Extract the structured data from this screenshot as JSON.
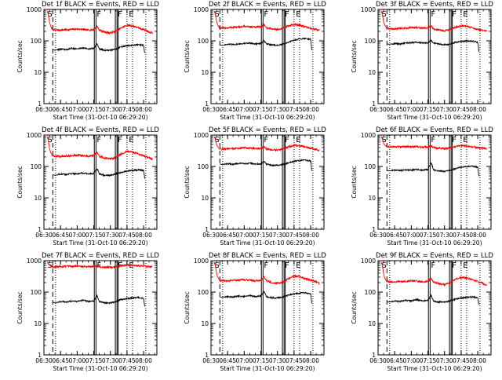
{
  "chart_data": {
    "type": "line",
    "yscale": "log",
    "ylim": [
      1,
      1000
    ],
    "ylabel": "Counts/sec",
    "xlabel": "Start Time (31-Oct-10 06:29:20)",
    "x_tick_labels": [
      "06:30",
      "06:45",
      "07:00",
      "07:15",
      "07:30",
      "07:45",
      "08:00"
    ],
    "y_tick_labels": [
      "1",
      "10",
      "100",
      "1000"
    ],
    "x_tick_minutes": [
      0,
      15,
      30,
      45,
      60,
      75,
      90
    ],
    "xlim_minutes": [
      0,
      102
    ],
    "y_ticks": [
      1,
      10,
      100,
      1000
    ],
    "colors": {
      "events": "#000000",
      "lld": "#ff0000"
    },
    "legend_text": "BLACK = Events, RED = LLD",
    "markers": [
      {
        "label": "S",
        "minute": 2.5,
        "style": "solid"
      },
      {
        "label": "F",
        "minute": 47,
        "style": "solid"
      },
      {
        "label": "F",
        "minute": 66,
        "style": "solid"
      },
      {
        "label": "E",
        "minute": 76,
        "style": "solid"
      }
    ],
    "vlines": [
      {
        "minute": 8,
        "style": "dashed"
      },
      {
        "minute": 10.5,
        "style": "dotted"
      },
      {
        "minute": 45.5,
        "style": "solid"
      },
      {
        "minute": 47,
        "style": "solid"
      },
      {
        "minute": 64.5,
        "style": "solid"
      },
      {
        "minute": 66,
        "style": "solid"
      },
      {
        "minute": 67,
        "style": "solid"
      },
      {
        "minute": 75,
        "style": "dotted"
      },
      {
        "minute": 80,
        "style": "dotted"
      },
      {
        "minute": 92,
        "style": "dotted"
      }
    ],
    "panels": [
      {
        "title": "Det 1f BLACK = Events, RED = LLD",
        "series": [
          {
            "color": "#ff0000",
            "x_minutes": [
              3,
              5,
              6,
              7,
              8,
              10,
              15,
              20,
              25,
              30,
              35,
              40,
              45,
              48,
              50,
              55,
              60,
              65,
              70,
              75,
              80,
              85,
              90,
              95,
              98
            ],
            "values": [
              900,
              400,
              300,
              250,
              230,
              220,
              220,
              225,
              230,
              240,
              230,
              220,
              230,
              290,
              220,
              190,
              180,
              200,
              260,
              310,
              300,
              260,
              230,
              190,
              180
            ]
          },
          {
            "color": "#000000",
            "x_minutes": [
              8,
              10,
              15,
              20,
              25,
              30,
              35,
              40,
              45,
              48,
              50,
              55,
              60,
              65,
              70,
              75,
              80,
              85,
              90,
              91
            ],
            "values": [
              52,
              50,
              55,
              52,
              58,
              55,
              60,
              55,
              58,
              80,
              55,
              50,
              50,
              55,
              65,
              70,
              72,
              75,
              72,
              40
            ]
          }
        ]
      },
      {
        "title": "Det 2f BLACK = Events, RED = LLD",
        "series": [
          {
            "color": "#ff0000",
            "x_minutes": [
              3,
              5,
              6,
              7,
              8,
              10,
              15,
              20,
              25,
              30,
              35,
              40,
              45,
              48,
              50,
              55,
              60,
              65,
              70,
              75,
              80,
              85,
              90,
              95,
              98
            ],
            "values": [
              900,
              420,
              320,
              280,
              260,
              250,
              260,
              270,
              270,
              290,
              280,
              270,
              280,
              330,
              260,
              240,
              230,
              250,
              300,
              330,
              320,
              280,
              250,
              230,
              220
            ]
          },
          {
            "color": "#000000",
            "x_minutes": [
              8,
              10,
              15,
              20,
              25,
              30,
              35,
              40,
              45,
              48,
              50,
              55,
              60,
              65,
              70,
              75,
              80,
              85,
              90,
              91
            ],
            "values": [
              75,
              72,
              78,
              76,
              80,
              82,
              85,
              80,
              82,
              100,
              80,
              75,
              72,
              78,
              90,
              105,
              115,
              120,
              112,
              50
            ]
          }
        ]
      },
      {
        "title": "Det 3f BLACK = Events, RED = LLD",
        "series": [
          {
            "color": "#ff0000",
            "x_minutes": [
              3,
              5,
              6,
              7,
              8,
              10,
              15,
              20,
              25,
              30,
              35,
              40,
              45,
              48,
              50,
              55,
              60,
              65,
              70,
              75,
              80,
              85,
              90,
              95,
              98
            ],
            "values": [
              900,
              400,
              320,
              280,
              250,
              240,
              240,
              250,
              250,
              270,
              260,
              250,
              260,
              300,
              240,
              220,
              210,
              230,
              270,
              300,
              290,
              260,
              230,
              210,
              200
            ]
          },
          {
            "color": "#000000",
            "x_minutes": [
              8,
              10,
              15,
              20,
              25,
              30,
              35,
              40,
              45,
              48,
              50,
              55,
              60,
              65,
              70,
              75,
              80,
              85,
              90,
              91
            ],
            "values": [
              80,
              78,
              82,
              80,
              85,
              88,
              90,
              85,
              88,
              105,
              85,
              80,
              75,
              80,
              90,
              95,
              100,
              98,
              90,
              45
            ]
          }
        ]
      },
      {
        "title": "Det 4f BLACK = Events, RED = LLD",
        "series": [
          {
            "color": "#ff0000",
            "x_minutes": [
              3,
              5,
              6,
              7,
              8,
              10,
              15,
              20,
              25,
              30,
              35,
              40,
              45,
              48,
              50,
              55,
              60,
              65,
              70,
              75,
              80,
              85,
              90,
              95,
              98
            ],
            "values": [
              900,
              380,
              280,
              240,
              220,
              210,
              210,
              215,
              220,
              230,
              220,
              210,
              220,
              280,
              210,
              185,
              175,
              190,
              250,
              300,
              290,
              250,
              220,
              190,
              170
            ]
          },
          {
            "color": "#000000",
            "x_minutes": [
              8,
              10,
              15,
              20,
              25,
              30,
              35,
              40,
              45,
              48,
              50,
              55,
              60,
              65,
              70,
              75,
              80,
              85,
              90,
              91
            ],
            "values": [
              55,
              52,
              58,
              55,
              60,
              58,
              62,
              58,
              60,
              85,
              58,
              52,
              52,
              58,
              65,
              72,
              75,
              78,
              74,
              42
            ]
          }
        ]
      },
      {
        "title": "Det 5f BLACK = Events, RED = LLD",
        "series": [
          {
            "color": "#ff0000",
            "x_minutes": [
              3,
              5,
              6,
              7,
              8,
              10,
              15,
              20,
              25,
              30,
              35,
              40,
              45,
              48,
              50,
              55,
              60,
              65,
              70,
              75,
              80,
              85,
              90,
              95,
              98
            ],
            "values": [
              900,
              500,
              420,
              390,
              370,
              360,
              360,
              370,
              380,
              390,
              380,
              370,
              380,
              430,
              360,
              340,
              330,
              350,
              420,
              470,
              460,
              420,
              380,
              350,
              320
            ]
          },
          {
            "color": "#000000",
            "x_minutes": [
              8,
              10,
              15,
              20,
              25,
              30,
              35,
              40,
              45,
              48,
              50,
              55,
              60,
              65,
              70,
              75,
              80,
              85,
              90,
              91
            ],
            "values": [
              120,
              115,
              122,
              118,
              125,
              122,
              128,
              120,
              122,
              145,
              118,
              110,
              108,
              115,
              130,
              145,
              155,
              160,
              150,
              70
            ]
          }
        ]
      },
      {
        "title": "Det 6f BLACK = Events, RED = LLD",
        "series": [
          {
            "color": "#ff0000",
            "x_minutes": [
              3,
              5,
              6,
              7,
              8,
              10,
              15,
              20,
              25,
              30,
              35,
              40,
              45,
              48,
              50,
              55,
              60,
              65,
              70,
              75,
              80,
              85,
              90,
              95,
              98
            ],
            "values": [
              900,
              550,
              480,
              450,
              430,
              420,
              420,
              425,
              420,
              430,
              420,
              410,
              420,
              450,
              400,
              380,
              370,
              390,
              430,
              460,
              450,
              420,
              400,
              380,
              360
            ]
          },
          {
            "color": "#000000",
            "x_minutes": [
              8,
              10,
              15,
              20,
              25,
              30,
              35,
              40,
              45,
              48,
              50,
              55,
              60,
              65,
              70,
              75,
              80,
              85,
              90,
              91
            ],
            "values": [
              75,
              72,
              76,
              74,
              78,
              76,
              80,
              76,
              80,
              130,
              78,
              72,
              70,
              75,
              85,
              95,
              100,
              102,
              95,
              48
            ]
          }
        ]
      },
      {
        "title": "Det 7f BLACK = Events, RED = LLD",
        "series": [
          {
            "color": "#ff0000",
            "x_minutes": [
              3,
              5,
              6,
              7,
              8,
              10,
              15,
              20,
              25,
              30,
              35,
              40,
              45,
              48,
              50,
              55,
              60,
              65,
              70,
              75,
              80,
              85,
              90,
              95,
              98
            ],
            "values": [
              900,
              720,
              680,
              660,
              650,
              640,
              650,
              660,
              650,
              670,
              660,
              650,
              660,
              700,
              640,
              620,
              610,
              630,
              680,
              720,
              710,
              690,
              670,
              650,
              630
            ]
          },
          {
            "color": "#000000",
            "x_minutes": [
              8,
              10,
              15,
              20,
              25,
              30,
              35,
              40,
              45,
              48,
              50,
              55,
              60,
              65,
              70,
              75,
              80,
              85,
              90,
              91
            ],
            "values": [
              48,
              45,
              50,
              48,
              52,
              50,
              55,
              50,
              52,
              75,
              50,
              45,
              45,
              50,
              58,
              62,
              65,
              68,
              62,
              35
            ]
          }
        ]
      },
      {
        "title": "Det 8f BLACK = Events, RED = LLD",
        "series": [
          {
            "color": "#ff0000",
            "x_minutes": [
              3,
              5,
              6,
              7,
              8,
              10,
              15,
              20,
              25,
              30,
              35,
              40,
              45,
              48,
              50,
              55,
              60,
              65,
              70,
              75,
              80,
              85,
              90,
              95,
              98
            ],
            "values": [
              900,
              400,
              300,
              260,
              240,
              230,
              230,
              240,
              240,
              250,
              240,
              230,
              240,
              300,
              230,
              200,
              190,
              210,
              270,
              320,
              310,
              270,
              240,
              210,
              190
            ]
          },
          {
            "color": "#000000",
            "x_minutes": [
              8,
              10,
              15,
              20,
              25,
              30,
              35,
              40,
              45,
              48,
              50,
              55,
              60,
              65,
              70,
              75,
              80,
              85,
              90,
              91
            ],
            "values": [
              70,
              68,
              72,
              70,
              75,
              72,
              78,
              72,
              75,
              100,
              72,
              66,
              65,
              70,
              80,
              88,
              92,
              95,
              88,
              45
            ]
          }
        ]
      },
      {
        "title": "Det 9f BLACK = Events, RED = LLD",
        "series": [
          {
            "color": "#ff0000",
            "x_minutes": [
              3,
              5,
              6,
              7,
              8,
              10,
              15,
              20,
              25,
              30,
              35,
              40,
              45,
              48,
              50,
              55,
              60,
              65,
              70,
              75,
              80,
              85,
              90,
              95,
              98
            ],
            "values": [
              900,
              380,
              280,
              240,
              220,
              210,
              210,
              215,
              220,
              230,
              220,
              210,
              220,
              270,
              210,
              185,
              175,
              195,
              250,
              290,
              280,
              245,
              215,
              185,
              170
            ]
          },
          {
            "color": "#000000",
            "x_minutes": [
              8,
              10,
              15,
              20,
              25,
              30,
              35,
              40,
              45,
              48,
              50,
              55,
              60,
              65,
              70,
              75,
              80,
              85,
              90,
              91
            ],
            "values": [
              50,
              48,
              52,
              50,
              55,
              52,
              58,
              52,
              55,
              78,
              52,
              48,
              48,
              52,
              60,
              65,
              68,
              70,
              66,
              38
            ]
          }
        ]
      }
    ]
  }
}
